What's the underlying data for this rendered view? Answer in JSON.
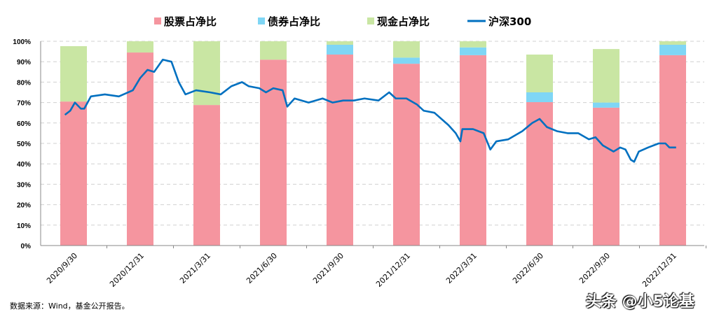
{
  "chart_data": {
    "type": "bar+line",
    "categories": [
      "2020/9/30",
      "2020/12/31",
      "2021/3/31",
      "2021/6/30",
      "2021/9/30",
      "2021/12/31",
      "2022/3/31",
      "2022/6/30",
      "2022/9/30",
      "2022/12/31"
    ],
    "series": [
      {
        "name": "股票占净比",
        "type": "stacked-bar",
        "color": "#f5959f",
        "values": [
          70.5,
          94.5,
          68.8,
          91,
          93.5,
          89,
          93.2,
          70.2,
          67.5,
          93.2
        ]
      },
      {
        "name": "债券占净比",
        "type": "stacked-bar",
        "color": "#7fd6f5",
        "values": [
          0,
          0,
          0,
          0,
          4.8,
          3,
          3.8,
          4.8,
          2.5,
          5.1
        ]
      },
      {
        "name": "现金占净比",
        "type": "stacked-bar",
        "color": "#c9e6a3",
        "values": [
          27.1,
          5.5,
          31.2,
          9,
          1.7,
          8,
          3,
          18.5,
          26.2,
          1.7
        ]
      },
      {
        "name": "沪深300",
        "type": "line",
        "color": "#0070c0",
        "points": [
          [
            -0.13,
            64
          ],
          [
            -0.05,
            66
          ],
          [
            0.02,
            70
          ],
          [
            0.11,
            67
          ],
          [
            0.16,
            67
          ],
          [
            0.26,
            73
          ],
          [
            0.47,
            74
          ],
          [
            0.68,
            73
          ],
          [
            0.89,
            76
          ],
          [
            1.0,
            82
          ],
          [
            1.11,
            86
          ],
          [
            1.21,
            85
          ],
          [
            1.34,
            91
          ],
          [
            1.47,
            90
          ],
          [
            1.58,
            80
          ],
          [
            1.68,
            74
          ],
          [
            1.84,
            76
          ],
          [
            2.05,
            75
          ],
          [
            2.21,
            74
          ],
          [
            2.37,
            78
          ],
          [
            2.53,
            80
          ],
          [
            2.63,
            78
          ],
          [
            2.79,
            77
          ],
          [
            2.89,
            75
          ],
          [
            3.0,
            77
          ],
          [
            3.14,
            76
          ],
          [
            3.21,
            68
          ],
          [
            3.32,
            72
          ],
          [
            3.53,
            70
          ],
          [
            3.74,
            72
          ],
          [
            3.89,
            70
          ],
          [
            4.05,
            71
          ],
          [
            4.21,
            71
          ],
          [
            4.37,
            72
          ],
          [
            4.58,
            71
          ],
          [
            4.74,
            75
          ],
          [
            4.84,
            72
          ],
          [
            5.0,
            72
          ],
          [
            5.16,
            69
          ],
          [
            5.26,
            66
          ],
          [
            5.42,
            65
          ],
          [
            5.63,
            59
          ],
          [
            5.74,
            55
          ],
          [
            5.81,
            51
          ],
          [
            5.84,
            57
          ],
          [
            6.0,
            57
          ],
          [
            6.16,
            55
          ],
          [
            6.26,
            47
          ],
          [
            6.35,
            51
          ],
          [
            6.53,
            52
          ],
          [
            6.74,
            56
          ],
          [
            6.89,
            60
          ],
          [
            7.0,
            62
          ],
          [
            7.11,
            58
          ],
          [
            7.26,
            56
          ],
          [
            7.42,
            55
          ],
          [
            7.58,
            55
          ],
          [
            7.74,
            52
          ],
          [
            7.84,
            53
          ],
          [
            7.95,
            49
          ],
          [
            8.11,
            46
          ],
          [
            8.21,
            48
          ],
          [
            8.29,
            47
          ],
          [
            8.37,
            42
          ],
          [
            8.42,
            41
          ],
          [
            8.49,
            46
          ],
          [
            8.63,
            48
          ],
          [
            8.79,
            50
          ],
          [
            8.89,
            50
          ],
          [
            8.95,
            48
          ],
          [
            9.05,
            48
          ]
        ]
      }
    ],
    "ylim": [
      0,
      100
    ],
    "yticks": [
      "0%",
      "10%",
      "20%",
      "30%",
      "40%",
      "50%",
      "60%",
      "70%",
      "80%",
      "90%",
      "100%"
    ],
    "grid": true,
    "legend": "top"
  },
  "footer": {
    "source": "数据来源：Wind，基金公开报告。",
    "watermark": "头条 @小5论基"
  }
}
